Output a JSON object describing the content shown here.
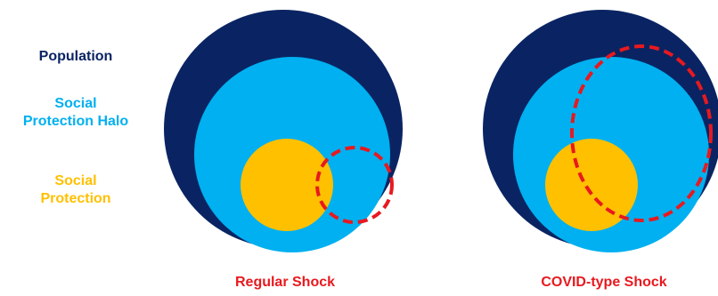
{
  "legend": {
    "population": "Population",
    "halo": "Social\nProtection Halo",
    "social_protection": "Social\nProtection"
  },
  "captions": {
    "regular": "Regular Shock",
    "covid": "COVID-type Shock"
  },
  "colors": {
    "population": "#0a2463",
    "halo": "#00b0f0",
    "social_protection": "#ffc000",
    "shock": "#e8191f"
  }
}
